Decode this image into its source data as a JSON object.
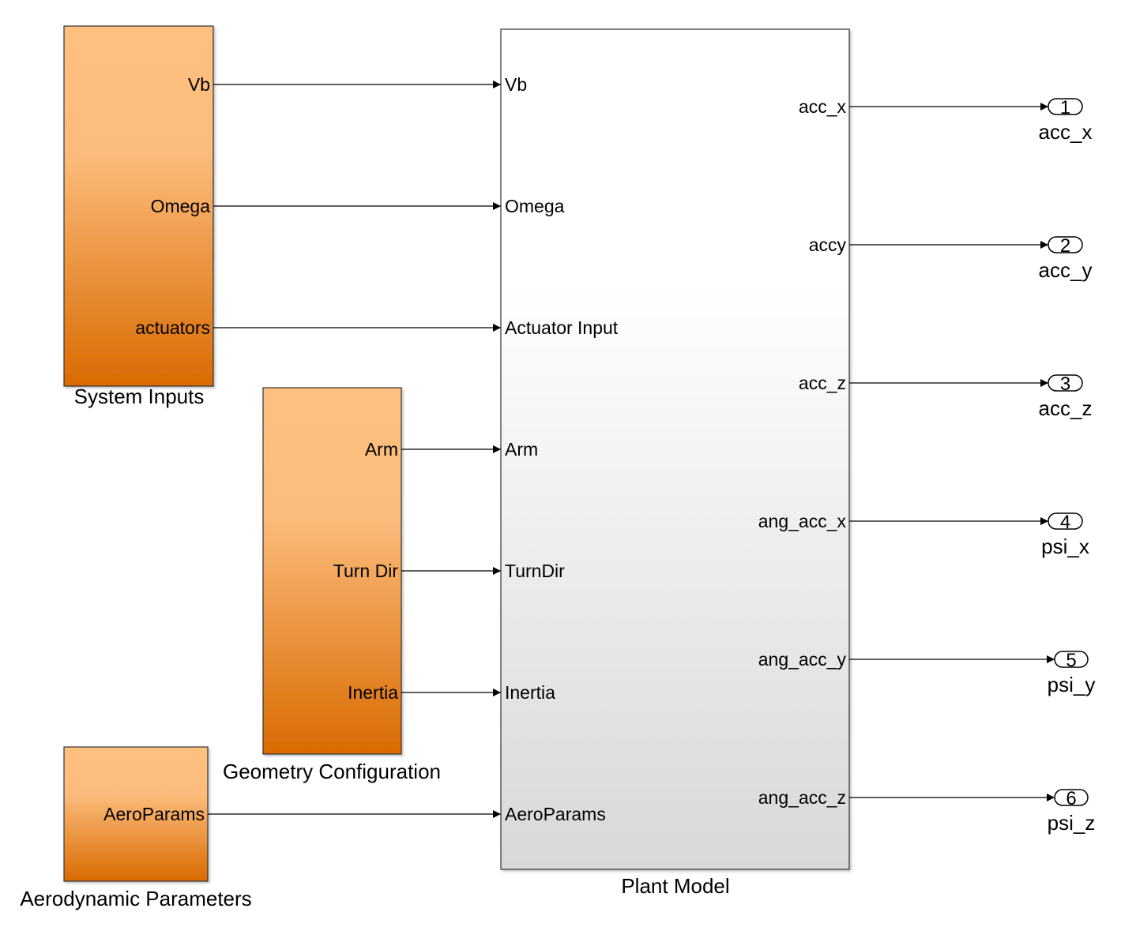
{
  "colors": {
    "subsystem_top": "#FEC080",
    "subsystem_bottom": "#D96A00",
    "plant_top": "#FFFFFF",
    "plant_bottom": "#D8D8D8",
    "line": "#000000"
  },
  "blocks": [
    {
      "id": "system-inputs",
      "label": "System Inputs",
      "outputs": [
        "Vb",
        "Omega",
        "actuators"
      ]
    },
    {
      "id": "geometry-configuration",
      "label": "Geometry Configuration",
      "outputs": [
        "Arm",
        "Turn Dir",
        "Inertia"
      ]
    },
    {
      "id": "aerodynamic-parameters",
      "label": "Aerodynamic Parameters",
      "outputs": [
        "AeroParams"
      ]
    }
  ],
  "plant": {
    "label": "Plant Model",
    "inputs": [
      "Vb",
      "Omega",
      "Actuator Input",
      "Arm",
      "TurnDir",
      "Inertia",
      "AeroParams"
    ],
    "outputs": [
      "acc_x",
      "accy",
      "acc_z",
      "ang_acc_x",
      "ang_acc_y",
      "ang_acc_z"
    ]
  },
  "outports": [
    {
      "number": "1",
      "name": "acc_x"
    },
    {
      "number": "2",
      "name": "acc_y"
    },
    {
      "number": "3",
      "name": "acc_z"
    },
    {
      "number": "4",
      "name": "psi_x"
    },
    {
      "number": "5",
      "name": "psi_y"
    },
    {
      "number": "6",
      "name": "psi_z"
    }
  ]
}
